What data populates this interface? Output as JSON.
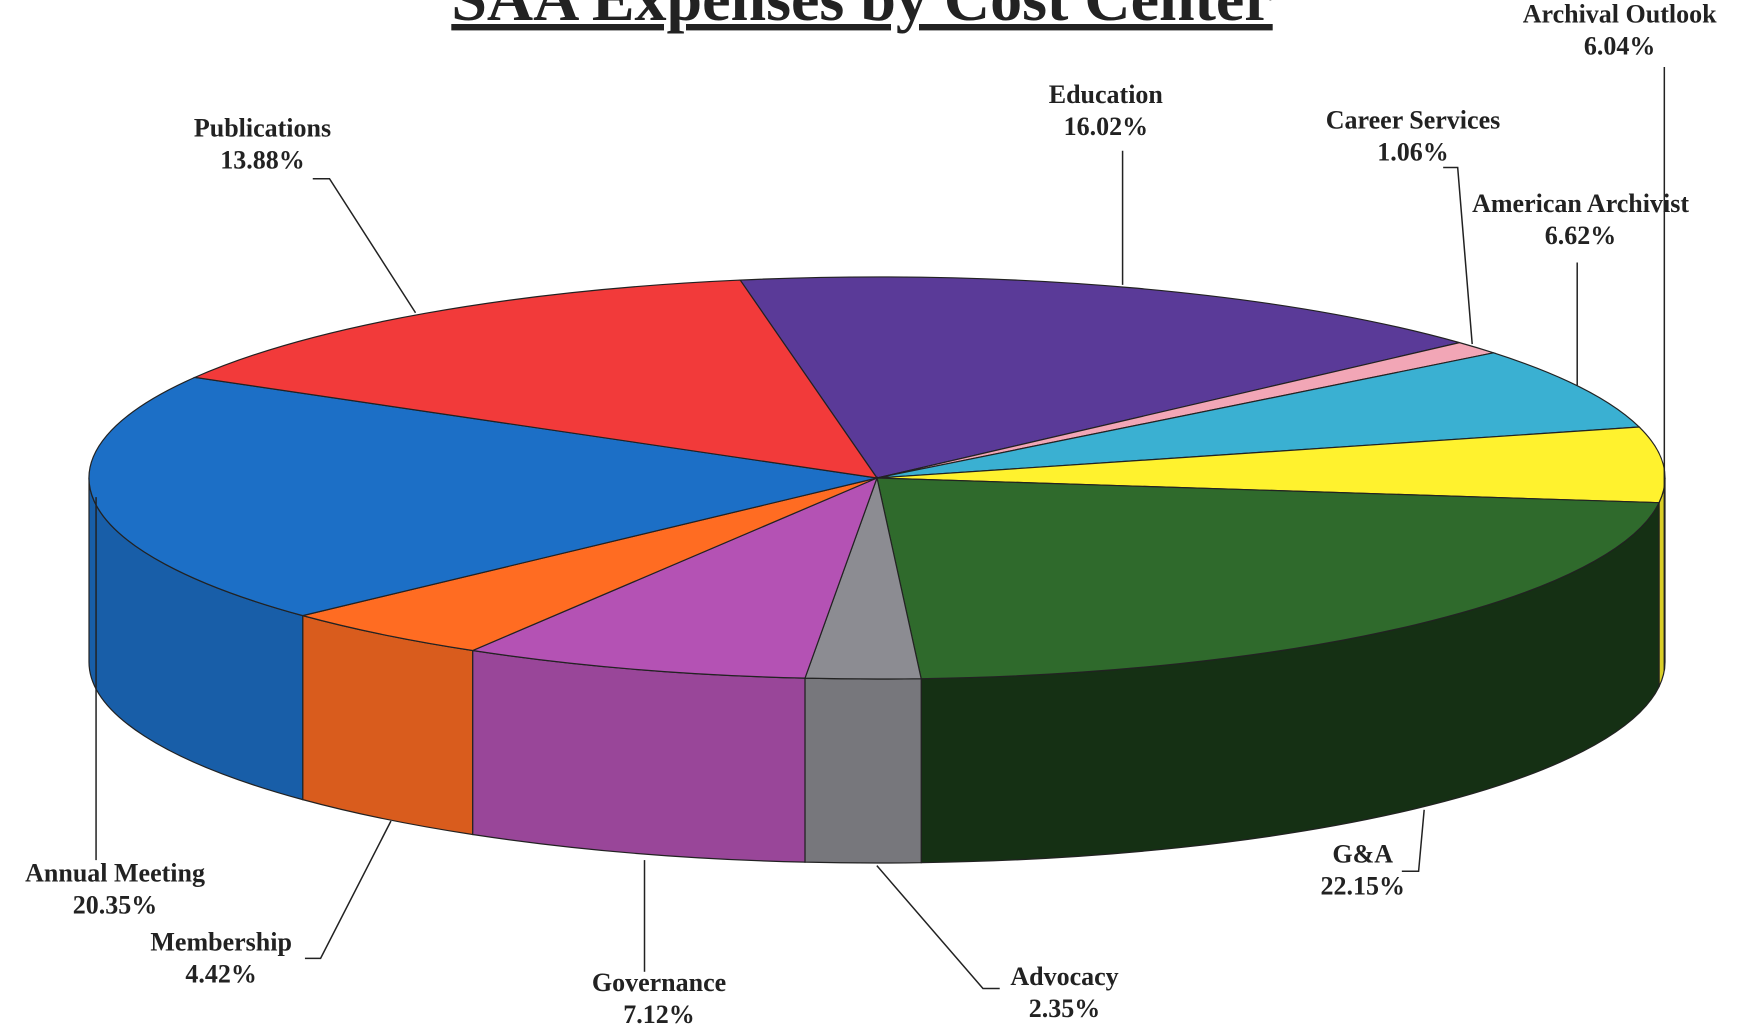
{
  "chart_data": {
    "type": "pie3d",
    "title": "SAA Expenses by Cost Center",
    "categories": [
      "Education",
      "Career Services",
      "American Archivist",
      "Archival Outlook",
      "G&A",
      "Advocacy",
      "Governance",
      "Membership",
      "Annual Meeting",
      "Publications"
    ],
    "values": [
      16.02,
      1.06,
      6.62,
      6.04,
      22.15,
      2.35,
      7.12,
      4.42,
      20.35,
      13.88
    ],
    "value_labels": [
      "16.02%",
      "1.06%",
      "6.62%",
      "6.04%",
      "22.15%",
      "2.35%",
      "7.12%",
      "4.42%",
      "20.35%",
      "13.88%"
    ],
    "colors": [
      "#5a3a98",
      "#f2a6b6",
      "#3ab0d2",
      "#fff22e",
      "#2f6a2c",
      "#8c8c92",
      "#b452b4",
      "#ff6c22",
      "#1c6fc6",
      "#f23a3a"
    ]
  }
}
